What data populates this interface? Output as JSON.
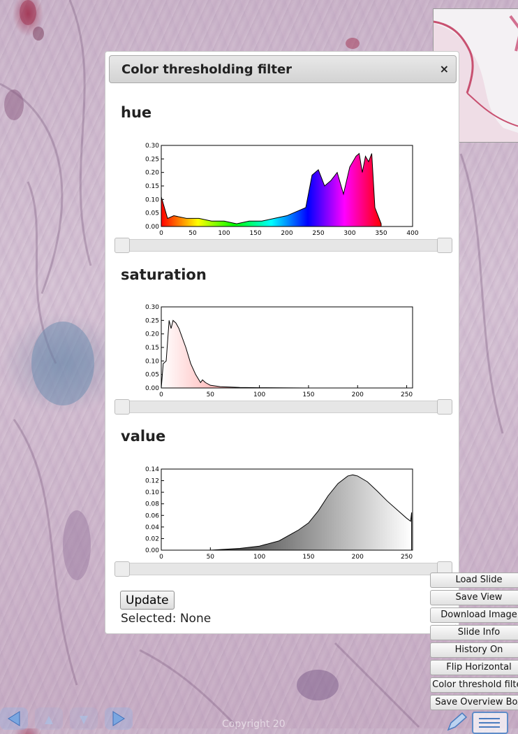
{
  "dialog": {
    "title": "Color thresholding filter",
    "close_glyph": "×",
    "update_label": "Update",
    "selected_text": "Selected: None"
  },
  "histograms": {
    "hue": {
      "label": "hue",
      "y_ticks": [
        "0.30",
        "0.25",
        "0.20",
        "0.15",
        "0.10",
        "0.05",
        "0.00"
      ],
      "x_ticks": [
        "0",
        "50",
        "100",
        "150",
        "200",
        "250",
        "300",
        "350",
        "400"
      ],
      "xlim": [
        0,
        400
      ],
      "ylim": [
        0,
        0.3
      ]
    },
    "saturation": {
      "label": "saturation",
      "y_ticks": [
        "0.30",
        "0.25",
        "0.20",
        "0.15",
        "0.10",
        "0.05",
        "0.00"
      ],
      "x_ticks": [
        "0",
        "50",
        "100",
        "150",
        "200",
        "250"
      ],
      "xlim": [
        0,
        256
      ],
      "ylim": [
        0,
        0.3
      ]
    },
    "value": {
      "label": "value",
      "y_ticks": [
        "0.14",
        "0.12",
        "0.10",
        "0.08",
        "0.06",
        "0.04",
        "0.02",
        "0.00"
      ],
      "x_ticks": [
        "0",
        "50",
        "100",
        "150",
        "200",
        "250"
      ],
      "xlim": [
        0,
        256
      ],
      "ylim": [
        0,
        0.14
      ]
    }
  },
  "chart_data": [
    {
      "type": "area",
      "title": "hue",
      "x": [
        0,
        10,
        20,
        40,
        60,
        80,
        100,
        120,
        140,
        160,
        180,
        200,
        210,
        220,
        230,
        240,
        250,
        260,
        270,
        280,
        290,
        300,
        310,
        315,
        320,
        325,
        330,
        335,
        340,
        350
      ],
      "values": [
        0.11,
        0.03,
        0.04,
        0.03,
        0.03,
        0.02,
        0.02,
        0.01,
        0.02,
        0.02,
        0.03,
        0.04,
        0.05,
        0.06,
        0.07,
        0.19,
        0.21,
        0.15,
        0.17,
        0.2,
        0.12,
        0.22,
        0.26,
        0.27,
        0.2,
        0.26,
        0.24,
        0.27,
        0.07,
        0.01
      ],
      "xlim": [
        0,
        400
      ],
      "ylim": [
        0,
        0.3
      ]
    },
    {
      "type": "area",
      "title": "saturation",
      "x": [
        0,
        2,
        5,
        8,
        10,
        12,
        15,
        18,
        20,
        25,
        30,
        35,
        40,
        42,
        45,
        50,
        60,
        80,
        100,
        150,
        200,
        250
      ],
      "values": [
        0.0,
        0.09,
        0.1,
        0.25,
        0.22,
        0.25,
        0.24,
        0.22,
        0.2,
        0.15,
        0.09,
        0.05,
        0.02,
        0.03,
        0.02,
        0.01,
        0.005,
        0.002,
        0.001,
        0.0,
        0.0,
        0.0
      ],
      "xlim": [
        0,
        256
      ],
      "ylim": [
        0,
        0.3
      ]
    },
    {
      "type": "area",
      "title": "value",
      "x": [
        0,
        50,
        80,
        100,
        120,
        140,
        150,
        160,
        170,
        180,
        190,
        195,
        200,
        210,
        220,
        230,
        240,
        250,
        254,
        255
      ],
      "values": [
        0.0,
        0.0,
        0.003,
        0.007,
        0.016,
        0.035,
        0.047,
        0.068,
        0.094,
        0.115,
        0.128,
        0.13,
        0.128,
        0.118,
        0.102,
        0.085,
        0.07,
        0.055,
        0.05,
        0.065
      ],
      "xlim": [
        0,
        256
      ],
      "ylim": [
        0,
        0.14
      ]
    }
  ],
  "side_menu": {
    "items": [
      "Load Slide",
      "Save View",
      "Download Image",
      "Slide Info",
      "History On",
      "Flip Horizontal",
      "Color threshold filter",
      "Save Overview Box"
    ]
  },
  "footer": {
    "copyright": "Copyright 20"
  },
  "colors": {
    "accent": "#5f8cc8",
    "dialog_title_bg": "#d3d3d3"
  }
}
